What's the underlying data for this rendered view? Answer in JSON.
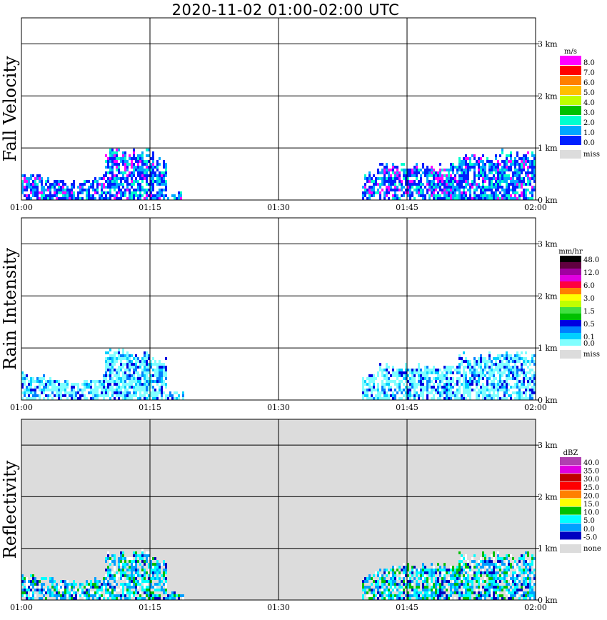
{
  "title": "2020-11-02   01:00-02:00 UTC",
  "chart_data": [
    {
      "type": "heatmap",
      "ylabel": "Fall Velocity",
      "unit": "m/s",
      "x_ticks": [
        "01:00",
        "01:15",
        "01:30",
        "01:45",
        "02:00"
      ],
      "y_ticks": [
        "0 km",
        "1 km",
        "2 km",
        "3 km"
      ],
      "ylim_km": [
        0,
        3.5
      ],
      "grid": true,
      "background": "#ffffff",
      "colorbar": [
        {
          "color": "#ff00ff",
          "label": "8.0"
        },
        {
          "color": "#ff0000",
          "label": "7.0"
        },
        {
          "color": "#ff7f00",
          "label": "6.0"
        },
        {
          "color": "#ffbf00",
          "label": "5.0"
        },
        {
          "color": "#bfff00",
          "label": "4.0"
        },
        {
          "color": "#00c000",
          "label": "3.0"
        },
        {
          "color": "#00ffcf",
          "label": "2.0"
        },
        {
          "color": "#00a8ff",
          "label": "1.0"
        },
        {
          "color": "#0020ff",
          "label": "0.0"
        }
      ],
      "missing": {
        "color": "#dcdcdc",
        "label": "miss"
      }
    },
    {
      "type": "heatmap",
      "ylabel": "Rain Intensity",
      "unit": "mm/hr",
      "x_ticks": [
        "01:00",
        "01:15",
        "01:30",
        "01:45",
        "02:00"
      ],
      "y_ticks": [
        "0 km",
        "1 km",
        "2 km",
        "3 km"
      ],
      "ylim_km": [
        0,
        3.5
      ],
      "grid": true,
      "background": "#ffffff",
      "colorbar": [
        {
          "color": "#000000",
          "label": "48.0"
        },
        {
          "color": "#600040",
          "label": ""
        },
        {
          "color": "#a000a0",
          "label": "12.0"
        },
        {
          "color": "#e000e0",
          "label": ""
        },
        {
          "color": "#ff0040",
          "label": "6.0"
        },
        {
          "color": "#ff8000",
          "label": ""
        },
        {
          "color": "#ffff00",
          "label": "3.0"
        },
        {
          "color": "#c0ff00",
          "label": ""
        },
        {
          "color": "#40e040",
          "label": "1.5"
        },
        {
          "color": "#00c000",
          "label": ""
        },
        {
          "color": "#0000e0",
          "label": "0.5"
        },
        {
          "color": "#0080ff",
          "label": ""
        },
        {
          "color": "#00d0ff",
          "label": "0.1"
        },
        {
          "color": "#80ffff",
          "label": "0.0"
        }
      ],
      "missing": {
        "color": "#dcdcdc",
        "label": "miss"
      }
    },
    {
      "type": "heatmap",
      "ylabel": "Reflectivity",
      "unit": "dBZ",
      "x_ticks": [
        "01:00",
        "01:15",
        "01:30",
        "01:45",
        "02:00"
      ],
      "y_ticks": [
        "0 km",
        "1 km",
        "2 km",
        "3 km"
      ],
      "ylim_km": [
        0,
        3.5
      ],
      "grid": true,
      "background": "#dcdcdc",
      "colorbar": [
        {
          "color": "#b040b0",
          "label": "40.0"
        },
        {
          "color": "#e000e0",
          "label": "35.0"
        },
        {
          "color": "#c00000",
          "label": "30.0"
        },
        {
          "color": "#ff0000",
          "label": "25.0"
        },
        {
          "color": "#ff8000",
          "label": "20.0"
        },
        {
          "color": "#ffff00",
          "label": "15.0"
        },
        {
          "color": "#00c000",
          "label": "10.0"
        },
        {
          "color": "#00ffff",
          "label": "5.0"
        },
        {
          "color": "#00a0ff",
          "label": "0.0"
        },
        {
          "color": "#0000c0",
          "label": "-5.0"
        }
      ],
      "missing": {
        "color": "#dcdcdc",
        "label": "none"
      }
    }
  ]
}
